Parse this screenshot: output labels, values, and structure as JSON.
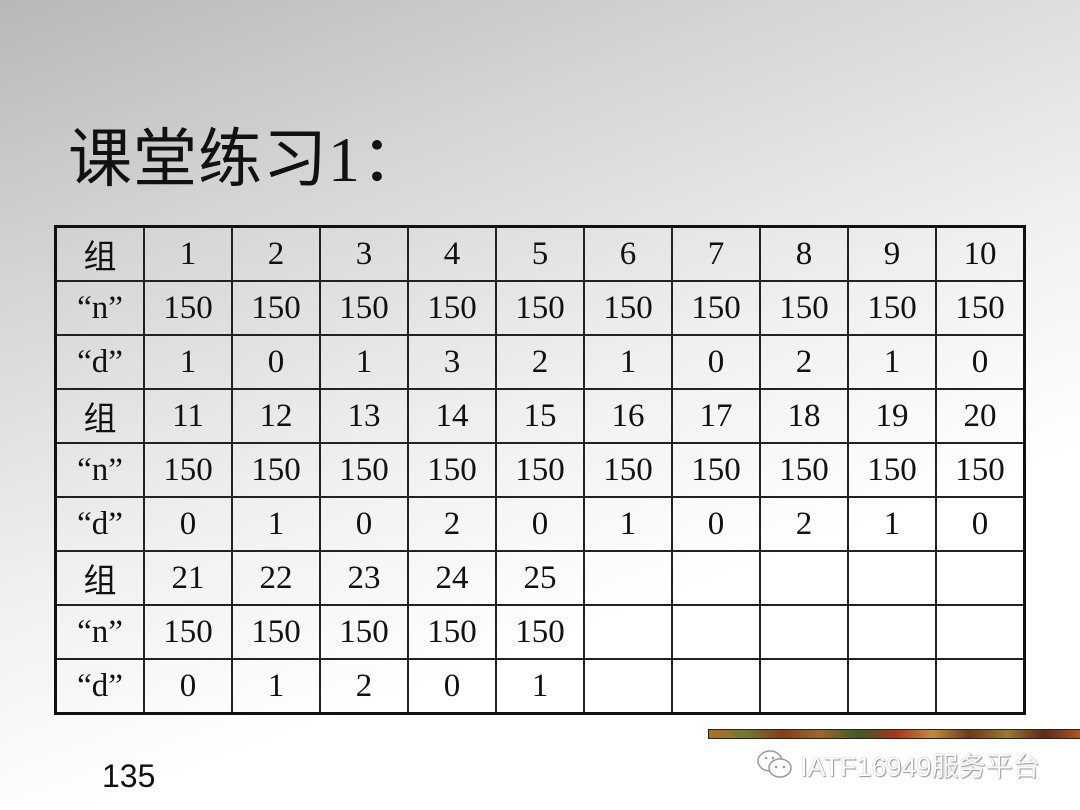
{
  "slide": {
    "title": "课堂练习1：",
    "page_number": "135",
    "watermark": "IATF16949服务平台",
    "watermark_icon": "wechat-icon"
  },
  "table": {
    "rows": [
      [
        "组",
        "1",
        "2",
        "3",
        "4",
        "5",
        "6",
        "7",
        "8",
        "9",
        "10"
      ],
      [
        "“n”",
        "150",
        "150",
        "150",
        "150",
        "150",
        "150",
        "150",
        "150",
        "150",
        "150"
      ],
      [
        "“d”",
        "1",
        "0",
        "1",
        "3",
        "2",
        "1",
        "0",
        "2",
        "1",
        "0"
      ],
      [
        "组",
        "11",
        "12",
        "13",
        "14",
        "15",
        "16",
        "17",
        "18",
        "19",
        "20"
      ],
      [
        "“n”",
        "150",
        "150",
        "150",
        "150",
        "150",
        "150",
        "150",
        "150",
        "150",
        "150"
      ],
      [
        "“d”",
        "0",
        "1",
        "0",
        "2",
        "0",
        "1",
        "0",
        "2",
        "1",
        "0"
      ],
      [
        "组",
        "21",
        "22",
        "23",
        "24",
        "25",
        "",
        "",
        "",
        "",
        ""
      ],
      [
        "“n”",
        "150",
        "150",
        "150",
        "150",
        "150",
        "",
        "",
        "",
        "",
        ""
      ],
      [
        "“d”",
        "0",
        "1",
        "2",
        "0",
        "1",
        "",
        "",
        "",
        "",
        ""
      ]
    ]
  }
}
